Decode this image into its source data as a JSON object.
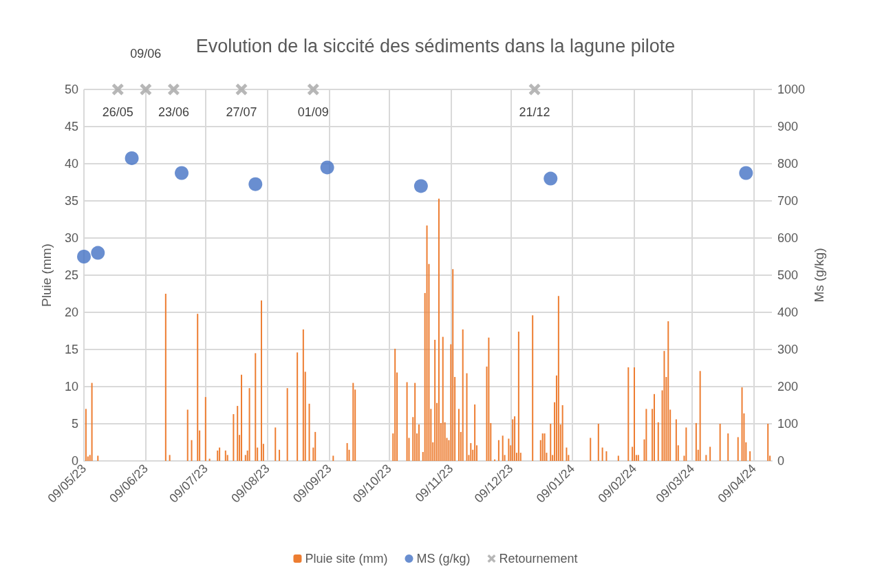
{
  "chart_data": {
    "type": "bar",
    "title": "Evolution de la siccité des sédiments dans la lagune pilote",
    "ylabel": "Pluie (mm)",
    "y2label": "Ms (g/kg)",
    "xlim": [
      "2023-05-09",
      "2024-04-18"
    ],
    "xticks": [
      {
        "value": "2023-05-09",
        "label": "09/05/23"
      },
      {
        "value": "2023-06-09",
        "label": "09/06/23"
      },
      {
        "value": "2023-07-09",
        "label": "09/07/23"
      },
      {
        "value": "2023-08-09",
        "label": "09/08/23"
      },
      {
        "value": "2023-09-09",
        "label": "09/09/23"
      },
      {
        "value": "2023-10-09",
        "label": "09/10/23"
      },
      {
        "value": "2023-11-09",
        "label": "09/11/23"
      },
      {
        "value": "2023-12-09",
        "label": "09/12/23"
      },
      {
        "value": "2024-01-09",
        "label": "09/01/24"
      },
      {
        "value": "2024-02-09",
        "label": "09/02/24"
      },
      {
        "value": "2024-03-09",
        "label": "09/03/24"
      },
      {
        "value": "2024-04-09",
        "label": "09/04/24"
      }
    ],
    "ylim": [
      0,
      50
    ],
    "yticks": [
      0,
      5,
      10,
      15,
      20,
      25,
      30,
      35,
      40,
      45,
      50
    ],
    "y2lim": [
      0,
      1000
    ],
    "y2ticks": [
      0,
      100,
      200,
      300,
      400,
      500,
      600,
      700,
      800,
      900,
      1000
    ],
    "grid": true,
    "legend": "bottom",
    "series": [
      {
        "name": "Pluie site (mm)",
        "color": "#ed7d31",
        "x": [
          "2023-05-10",
          "2023-05-11",
          "2023-05-12",
          "2023-05-13",
          "2023-05-16",
          "2023-06-19",
          "2023-06-21",
          "2023-06-30",
          "2023-07-02",
          "2023-07-05",
          "2023-07-06",
          "2023-07-09",
          "2023-07-11",
          "2023-07-15",
          "2023-07-16",
          "2023-07-19",
          "2023-07-20",
          "2023-07-23",
          "2023-07-25",
          "2023-07-26",
          "2023-07-27",
          "2023-07-29",
          "2023-07-30",
          "2023-07-31",
          "2023-08-03",
          "2023-08-04",
          "2023-08-06",
          "2023-08-07",
          "2023-08-13",
          "2023-08-15",
          "2023-08-19",
          "2023-08-24",
          "2023-08-27",
          "2023-08-28",
          "2023-08-30",
          "2023-09-01",
          "2023-09-02",
          "2023-09-11",
          "2023-09-18",
          "2023-09-19",
          "2023-09-21",
          "2023-09-22",
          "2023-10-11",
          "2023-10-12",
          "2023-10-13",
          "2023-10-18",
          "2023-10-19",
          "2023-10-21",
          "2023-10-22",
          "2023-10-23",
          "2023-10-24",
          "2023-10-26",
          "2023-10-27",
          "2023-10-28",
          "2023-10-29",
          "2023-10-30",
          "2023-10-31",
          "2023-11-01",
          "2023-11-02",
          "2023-11-03",
          "2023-11-04",
          "2023-11-05",
          "2023-11-06",
          "2023-11-07",
          "2023-11-08",
          "2023-11-09",
          "2023-11-10",
          "2023-11-11",
          "2023-11-13",
          "2023-11-14",
          "2023-11-15",
          "2023-11-17",
          "2023-11-18",
          "2023-11-19",
          "2023-11-20",
          "2023-11-21",
          "2023-11-22",
          "2023-11-27",
          "2023-11-28",
          "2023-11-29",
          "2023-12-01",
          "2023-12-03",
          "2023-12-05",
          "2023-12-06",
          "2023-12-08",
          "2023-12-09",
          "2023-12-10",
          "2023-12-11",
          "2023-12-12",
          "2023-12-13",
          "2023-12-14",
          "2023-12-20",
          "2023-12-24",
          "2023-12-25",
          "2023-12-26",
          "2023-12-27",
          "2023-12-29",
          "2023-12-30",
          "2023-12-31",
          "2024-01-01",
          "2024-01-02",
          "2024-01-03",
          "2024-01-04",
          "2024-01-06",
          "2024-01-07",
          "2024-01-18",
          "2024-01-22",
          "2024-01-24",
          "2024-01-26",
          "2024-02-01",
          "2024-02-06",
          "2024-02-08",
          "2024-02-09",
          "2024-02-10",
          "2024-02-11",
          "2024-02-14",
          "2024-02-15",
          "2024-02-18",
          "2024-02-19",
          "2024-02-21",
          "2024-02-23",
          "2024-02-24",
          "2024-02-25",
          "2024-02-26",
          "2024-02-27",
          "2024-03-01",
          "2024-03-02",
          "2024-03-05",
          "2024-03-06",
          "2024-03-11",
          "2024-03-12",
          "2024-03-13",
          "2024-03-16",
          "2024-03-18",
          "2024-03-23",
          "2024-03-27",
          "2024-04-01",
          "2024-04-03",
          "2024-04-04",
          "2024-04-05",
          "2024-04-07",
          "2024-04-16",
          "2024-04-17"
        ],
        "values": [
          7.0,
          0.6,
          0.8,
          10.5,
          0.7,
          22.5,
          0.8,
          6.9,
          2.8,
          19.8,
          4.1,
          8.6,
          0.3,
          1.4,
          1.8,
          1.4,
          0.8,
          6.3,
          7.4,
          3.5,
          11.6,
          0.8,
          1.4,
          9.8,
          14.5,
          1.8,
          21.6,
          2.3,
          4.5,
          1.5,
          9.8,
          14.6,
          17.7,
          12.0,
          7.7,
          1.8,
          3.9,
          0.7,
          2.4,
          1.5,
          10.5,
          9.6,
          3.7,
          15.1,
          11.9,
          10.6,
          3.1,
          5.9,
          10.5,
          3.7,
          4.9,
          1.2,
          22.6,
          31.7,
          26.5,
          7.0,
          2.5,
          16.3,
          7.8,
          35.3,
          5.1,
          16.7,
          5.2,
          3.1,
          2.8,
          15.7,
          25.8,
          11.3,
          7.0,
          3.9,
          17.7,
          11.8,
          0.8,
          2.4,
          1.5,
          7.6,
          2.1,
          12.7,
          16.6,
          5.1,
          0.2,
          2.8,
          3.4,
          0.8,
          3.0,
          2.1,
          5.6,
          6.0,
          1.1,
          17.4,
          1.1,
          19.6,
          2.8,
          3.7,
          3.7,
          1.1,
          5.0,
          0.8,
          7.9,
          11.5,
          22.2,
          4.9,
          7.5,
          1.8,
          0.8,
          3.1,
          5.0,
          1.8,
          1.3,
          0.7,
          12.6,
          1.9,
          12.6,
          0.8,
          0.8,
          2.9,
          7.0,
          7.0,
          9.0,
          5.2,
          9.5,
          14.8,
          11.3,
          18.8,
          6.9,
          5.6,
          2.1,
          0.7,
          4.5,
          5.1,
          1.5,
          12.1,
          0.8,
          1.9,
          5.0,
          3.7,
          3.2,
          9.9,
          6.4,
          2.5,
          1.3,
          5.0,
          0.7
        ]
      },
      {
        "name": "MS (g/kg)",
        "type": "scatter",
        "axis": "y2",
        "color": "#4472c4",
        "marker": "circle",
        "x": [
          "2023-05-09",
          "2023-05-16",
          "2023-06-02",
          "2023-06-27",
          "2023-08-03",
          "2023-09-08",
          "2023-10-25",
          "2023-12-29",
          "2024-04-05"
        ],
        "values": [
          550,
          560,
          815,
          775,
          745,
          790,
          740,
          760,
          775
        ]
      },
      {
        "name": "Retournement",
        "type": "scatter",
        "color": "#a5a5a5",
        "marker": "cross",
        "x": [
          "2023-05-26",
          "2023-06-09",
          "2023-06-23",
          "2023-07-27",
          "2023-09-01",
          "2023-12-21"
        ],
        "values": [
          50,
          50,
          50,
          50,
          50,
          50
        ]
      }
    ],
    "annotations": [
      {
        "text": "26/05",
        "x": "2023-05-26",
        "y": 50
      },
      {
        "text": "09/06",
        "x": "2023-06-09",
        "y": 50
      },
      {
        "text": "23/06",
        "x": "2023-06-23",
        "y": 50
      },
      {
        "text": "27/07",
        "x": "2023-07-27",
        "y": 50
      },
      {
        "text": "01/09",
        "x": "2023-09-01",
        "y": 50
      },
      {
        "text": "21/12",
        "x": "2023-12-21",
        "y": 50
      }
    ]
  }
}
